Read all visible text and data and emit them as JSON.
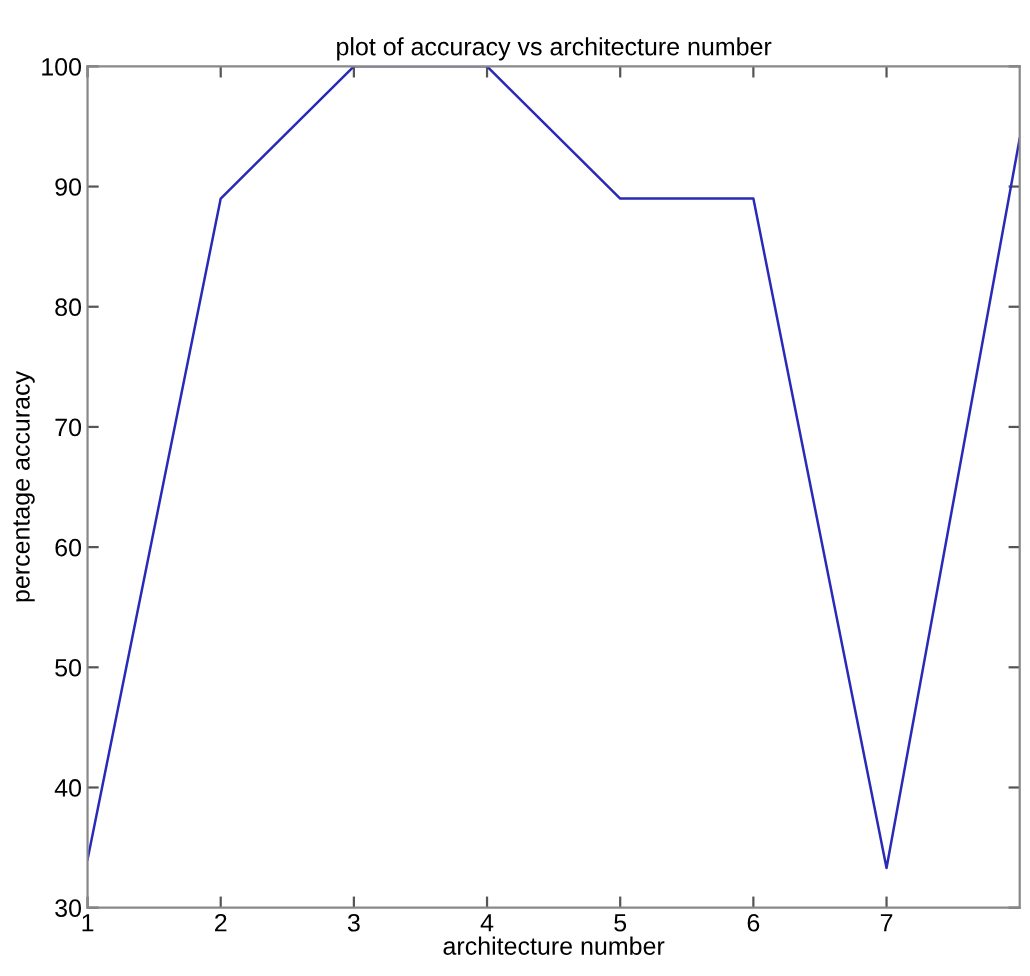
{
  "chart_data": {
    "type": "line",
    "title": "plot of accuracy vs architecture number",
    "xlabel": "architecture number",
    "ylabel": "percentage accuracy",
    "x": [
      1,
      2,
      3,
      4,
      5,
      6,
      7,
      8
    ],
    "series": [
      {
        "color": "#2a2ab8",
        "values": [
          34,
          89,
          100,
          100,
          89,
          89,
          33.3,
          94
        ]
      }
    ],
    "xlim": [
      1,
      8
    ],
    "xticks": [
      1,
      2,
      3,
      4,
      5,
      6,
      7
    ],
    "ylim": [
      30,
      100
    ],
    "yticks": [
      30,
      40,
      50,
      60,
      70,
      80,
      90,
      100
    ],
    "grid": false,
    "legend": false
  }
}
